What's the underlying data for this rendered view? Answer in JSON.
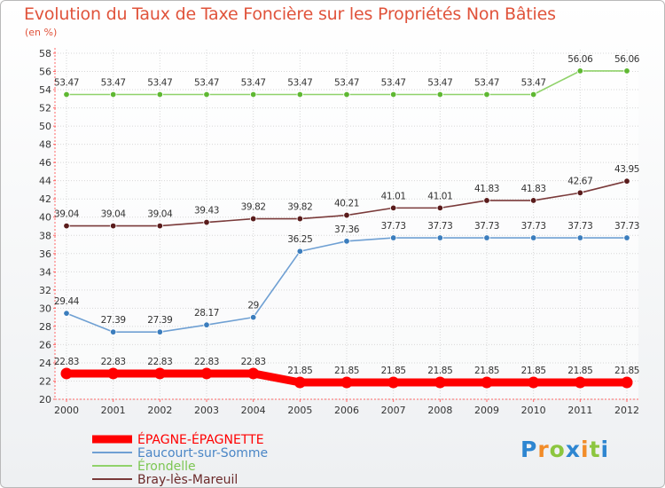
{
  "chart_data": {
    "type": "line",
    "title": "Evolution du Taux de Taxe Foncière sur les Propriétés Non Bâties",
    "ylabel": "(en %)",
    "xlabel": "",
    "categories": [
      "2000",
      "2001",
      "2002",
      "2003",
      "2004",
      "2005",
      "2006",
      "2007",
      "2008",
      "2009",
      "2010",
      "2011",
      "2012"
    ],
    "ylim": [
      20,
      58
    ],
    "yticks": [
      20,
      22,
      24,
      26,
      28,
      30,
      32,
      34,
      36,
      38,
      40,
      42,
      44,
      46,
      48,
      50,
      52,
      54,
      56,
      58
    ],
    "grid": true,
    "legend_position": "bottom-left",
    "series": [
      {
        "name": "ÉPAGNE-ÉPAGNETTE",
        "color": "#ff0000",
        "marker_color": "#ff0000",
        "label_color": "#ff0000",
        "values": [
          22.83,
          22.83,
          22.83,
          22.83,
          22.83,
          21.85,
          21.85,
          21.85,
          21.85,
          21.85,
          21.85,
          21.85,
          21.85
        ],
        "labels": [
          "22.83",
          "22.83",
          "22.83",
          "22.83",
          "22.83",
          "21.85",
          "21.85",
          "21.85",
          "21.85",
          "21.85",
          "21.85",
          "21.85",
          "21.85"
        ]
      },
      {
        "name": "Eaucourt-sur-Somme",
        "color": "#6fa0d3",
        "marker_color": "#3b7dbd",
        "label_color": "#4a86c6",
        "values": [
          29.44,
          27.39,
          27.39,
          28.17,
          29,
          36.25,
          37.36,
          37.73,
          37.73,
          37.73,
          37.73,
          37.73,
          37.73
        ],
        "labels": [
          "29.44",
          "27.39",
          "27.39",
          "28.17",
          "29",
          "36.25",
          "37.36",
          "37.73",
          "37.73",
          "37.73",
          "37.73",
          "37.73",
          "37.73"
        ]
      },
      {
        "name": "Érondelle",
        "color": "#90d26a",
        "marker_color": "#5fb832",
        "label_color": "#7cc653",
        "values": [
          53.47,
          53.47,
          53.47,
          53.47,
          53.47,
          53.47,
          53.47,
          53.47,
          53.47,
          53.47,
          53.47,
          56.06,
          56.06
        ],
        "labels": [
          "53.47",
          "53.47",
          "53.47",
          "53.47",
          "53.47",
          "53.47",
          "53.47",
          "53.47",
          "53.47",
          "53.47",
          "53.47",
          "56.06",
          "56.06"
        ]
      },
      {
        "name": "Bray-lès-Mareuil",
        "color": "#7a3a3a",
        "marker_color": "#5a1c1c",
        "label_color": "#6b2a2a",
        "values": [
          39.04,
          39.04,
          39.04,
          39.43,
          39.82,
          39.82,
          40.21,
          41.01,
          41.01,
          41.83,
          41.83,
          42.67,
          43.95
        ],
        "labels": [
          "39.04",
          "39.04",
          "39.04",
          "39.43",
          "39.82",
          "39.82",
          "40.21",
          "41.01",
          "41.01",
          "41.83",
          "41.83",
          "42.67",
          "43.95"
        ]
      }
    ]
  },
  "logo": {
    "letters": [
      "P",
      "r",
      "o",
      "x",
      "i",
      "t",
      "i"
    ],
    "colors": [
      "#2e86d1",
      "#f28c28",
      "#8cc63f",
      "#2e86d1",
      "#f28c28",
      "#8cc63f",
      "#2e86d1"
    ]
  }
}
